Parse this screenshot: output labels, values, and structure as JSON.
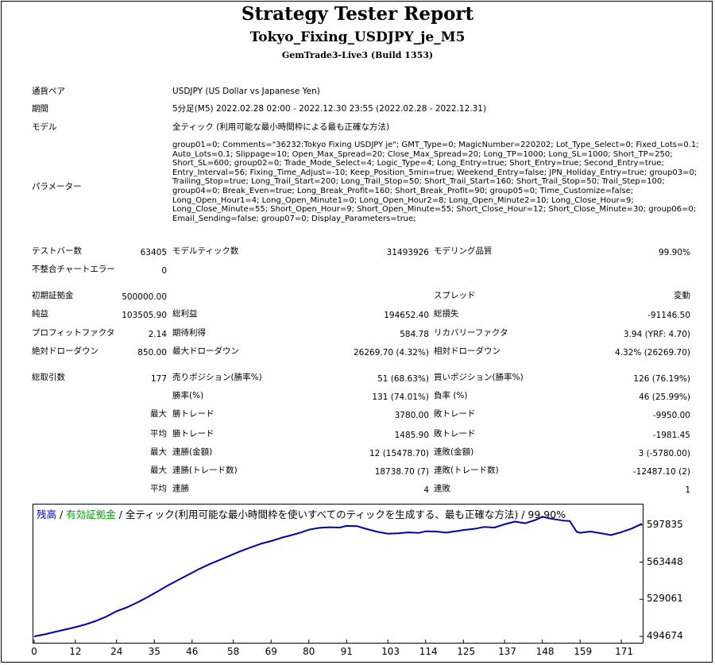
{
  "title": "Strategy Tester Report",
  "subtitle": "Tokyo_Fixing_USDJPY_je_M5",
  "server": "GemTrade3-Live3 (Build 1353)",
  "info": {
    "pair_label": "通貨ペア",
    "pair_value": "USDJPY (US Dollar vs Japanese Yen)",
    "period_label": "期間",
    "period_value": "5分足(M5) 2022.02.28 02:00 - 2022.12.30 23:55 (2022.02.28 - 2022.12.31)",
    "model_label": "モデル",
    "model_value": "全ティック (利用可能な最小時間枠による最も正確な方法)",
    "params_label": "パラメーター",
    "params_value": "group01=0; Comments=\"36232:Tokyo Fixing USDJPY je\"; GMT_Type=0; MagicNumber=220202; Lot_Type_Select=0; Fixed_Lots=0.1; Auto_Lots=0.1; Slippage=10; Open_Max_Spread=20; Close_Max_Spread=20; Long_TP=1000; Long_SL=1000; Short_TP=250; Short_SL=600; group02=0; Trade_Mode_Select=4; Logic_Type=4; Long_Entry=true; Short_Entry=true; Second_Entry=true; Entry_Interval=56; Fixing_Time_Adjust=-10; Keep_Position_5min=true; Weekend_Entry=false; JPN_Holiday_Entry=true; group03=0; Trailing_Stop=true; Long_Trail_Start=200; Long_Trail_Stop=50; Short_Trail_Start=160; Short_Trail_Stop=50; Trail_Step=100; group04=0; Break_Even=true; Long_Break_Profit=160; Short_Break_Profit=90; group05=0; Time_Customize=false; Long_Open_Hour1=4; Long_Open_Minute1=0; Long_Open_Hour2=8; Long_Open_Minute2=10; Long_Close_Hour=9; Long_Close_Minute=55; Short_Open_Hour=9; Short_Open_Minute=55; Short_Close_Hour=12; Short_Close_Minute=30; group06=0; Email_Sending=false; group07=0; Display_Parameters=true;"
  },
  "stats": {
    "bars_label": "テストバー数",
    "bars_value": "63405",
    "ticks_label": "モデルティック数",
    "ticks_value": "31493926",
    "quality_label": "モデリング品質",
    "quality_value": "99.90%",
    "errors_label": "不整合チャートエラー",
    "errors_value": "0",
    "deposit_label": "初期証拠金",
    "deposit_value": "500000.00",
    "spread_label": "スプレッド",
    "spread_value": "変動",
    "net_label": "純益",
    "net_value": "103505.90",
    "gross_profit_label": "総利益",
    "gross_profit_value": "194652.40",
    "gross_loss_label": "総損失",
    "gross_loss_value": "-91146.50",
    "pf_label": "プロフィットファクタ",
    "pf_value": "2.14",
    "expected_label": "期待利得",
    "expected_value": "584.78",
    "recovery_label": "リカバリーファクタ",
    "recovery_value": "3.94 (YRF: 4.70)",
    "abs_dd_label": "絶対ドローダウン",
    "abs_dd_value": "850.00",
    "max_dd_label": "最大ドローダウン",
    "max_dd_value": "26269.70 (4.32%)",
    "rel_dd_label": "相対ドローダウン",
    "rel_dd_value": "4.32% (26269.70)",
    "trades_label": "総取引数",
    "trades_value": "177",
    "short_label": "売りポジション(勝率%)",
    "short_value": "51 (68.63%)",
    "long_label": "買いポジション(勝率%)",
    "long_value": "126 (76.19%)",
    "win_rate_label": "勝率(%)",
    "win_rate_value": "131 (74.01%)",
    "loss_rate_label": "負率 (%)",
    "loss_rate_value": "46 (25.99%)",
    "max_label": "最大",
    "avg_label": "平均",
    "win_trade_label": "勝トレード",
    "loss_trade_label": "敗トレード",
    "max_win_value": "3780.00",
    "max_loss_value": "-9950.00",
    "avg_win_value": "1485.90",
    "avg_loss_value": "-1981.45",
    "consec_win_amt_label": "連勝(金額)",
    "consec_win_amt_value": "12 (15478.70)",
    "consec_loss_amt_label": "連敗(金額)",
    "consec_loss_amt_value": "3 (-5780.00)",
    "consec_win_cnt_label": "連勝(トレード数)",
    "consec_win_cnt_value": "18738.70 (7)",
    "consec_loss_cnt_label": "連敗(トレード数)",
    "consec_loss_cnt_value": "-12487.10 (2)",
    "win_streak_label": "連勝",
    "win_streak_value": "4",
    "loss_streak_label": "連敗",
    "loss_streak_value": "1"
  },
  "chart_legend": {
    "balance": "残高",
    "sep1": " / ",
    "equity": "有効証拠金",
    "rest": " / 全ティック(利用可能な最小時間枠を使いすべてのティックを生成する、最も正確な方法) / 99.90%",
    "balance_color": "#0000c0",
    "equity_color": "#00a000"
  },
  "chart_data": {
    "type": "line",
    "ylim": [
      494674,
      608000
    ],
    "xlim": [
      0,
      177
    ],
    "y_ticks": [
      597835,
      563448,
      529061,
      494674
    ],
    "x_ticks": [
      0,
      12,
      24,
      35,
      46,
      58,
      69,
      80,
      91,
      103,
      114,
      125,
      137,
      148,
      159,
      171
    ],
    "series": [
      {
        "color": "#0000aa",
        "x": [
          0,
          3,
          6,
          9,
          12,
          15,
          18,
          21,
          24,
          27,
          30,
          33,
          36,
          39,
          42,
          45,
          48,
          51,
          54,
          57,
          60,
          63,
          66,
          69,
          72,
          75,
          78,
          80,
          83,
          86,
          89,
          91,
          94,
          97,
          100,
          103,
          106,
          109,
          112,
          114,
          117,
          120,
          123,
          125,
          128,
          131,
          134,
          137,
          140,
          143,
          146,
          148,
          150,
          152,
          154,
          156,
          158,
          159,
          162,
          165,
          168,
          171,
          174,
          177
        ],
        "y": [
          494674,
          496500,
          498800,
          501000,
          503200,
          505800,
          509000,
          513000,
          518000,
          521500,
          526000,
          531000,
          536500,
          542000,
          547000,
          552000,
          557000,
          561500,
          565500,
          569500,
          573500,
          577000,
          580500,
          583000,
          586000,
          588500,
          591200,
          593500,
          595200,
          595800,
          595500,
          597000,
          596800,
          594000,
          591500,
          589800,
          590200,
          591000,
          590500,
          592000,
          591800,
          590800,
          592200,
          593200,
          594200,
          596000,
          595500,
          598500,
          601000,
          599500,
          602500,
          605500,
          604000,
          603000,
          602000,
          601500,
          591500,
          590600,
          591800,
          590300,
          588500,
          591200,
          594500,
          599000
        ]
      }
    ]
  }
}
